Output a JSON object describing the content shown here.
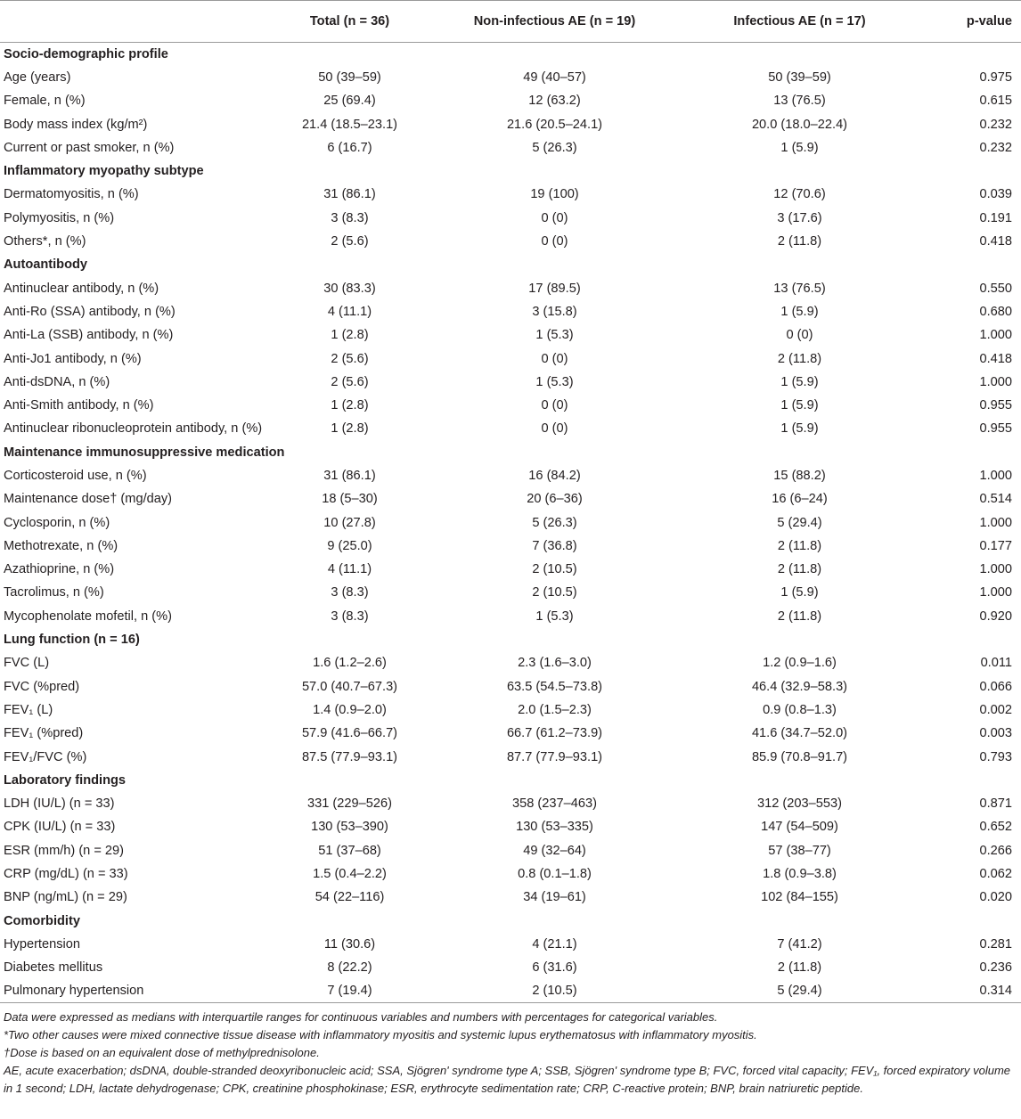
{
  "table": {
    "headers": {
      "label": "",
      "total": "Total (n = 36)",
      "noninf": "Non-infectious AE (n = 19)",
      "inf": "Infectious AE (n = 17)",
      "pvalue": "p-value"
    },
    "rows": [
      {
        "type": "section",
        "label": "Socio-demographic profile"
      },
      {
        "label": "Age (years)",
        "total": "50 (39–59)",
        "noninf": "49 (40–57)",
        "inf": "50 (39–59)",
        "p": "0.975"
      },
      {
        "label": "Female, n (%)",
        "total": "25 (69.4)",
        "noninf": "12 (63.2)",
        "inf": "13 (76.5)",
        "p": "0.615"
      },
      {
        "label": "Body mass index (kg/m²)",
        "total": "21.4 (18.5–23.1)",
        "noninf": "21.6 (20.5–24.1)",
        "inf": "20.0 (18.0–22.4)",
        "p": "0.232"
      },
      {
        "label": "Current or past smoker, n (%)",
        "total": "6 (16.7)",
        "noninf": "5 (26.3)",
        "inf": "1 (5.9)",
        "p": "0.232"
      },
      {
        "type": "section",
        "label": "Inflammatory myopathy subtype"
      },
      {
        "label": "Dermatomyositis, n (%)",
        "total": "31 (86.1)",
        "noninf": "19 (100)",
        "inf": "12 (70.6)",
        "p": "0.039"
      },
      {
        "label": "Polymyositis, n (%)",
        "total": "3 (8.3)",
        "noninf": "0 (0)",
        "inf": "3 (17.6)",
        "p": "0.191"
      },
      {
        "label": "Others*, n (%)",
        "total": "2 (5.6)",
        "noninf": "0 (0)",
        "inf": "2 (11.8)",
        "p": "0.418"
      },
      {
        "type": "section",
        "label": "Autoantibody"
      },
      {
        "label": "Antinuclear antibody, n (%)",
        "total": "30 (83.3)",
        "noninf": "17 (89.5)",
        "inf": "13 (76.5)",
        "p": "0.550"
      },
      {
        "label": "Anti-Ro (SSA) antibody, n (%)",
        "total": "4 (11.1)",
        "noninf": "3 (15.8)",
        "inf": "1 (5.9)",
        "p": "0.680"
      },
      {
        "label": "Anti-La (SSB) antibody, n (%)",
        "total": "1 (2.8)",
        "noninf": "1 (5.3)",
        "inf": "0 (0)",
        "p": "1.000"
      },
      {
        "label": "Anti-Jo1 antibody, n (%)",
        "total": "2 (5.6)",
        "noninf": "0 (0)",
        "inf": "2 (11.8)",
        "p": "0.418"
      },
      {
        "label": "Anti-dsDNA, n (%)",
        "total": "2 (5.6)",
        "noninf": "1 (5.3)",
        "inf": "1 (5.9)",
        "p": "1.000"
      },
      {
        "label": "Anti-Smith antibody, n (%)",
        "total": "1 (2.8)",
        "noninf": "0 (0)",
        "inf": "1 (5.9)",
        "p": "0.955"
      },
      {
        "label": "Antinuclear ribonucleoprotein antibody, n (%)",
        "total": "1 (2.8)",
        "noninf": "0 (0)",
        "inf": "1 (5.9)",
        "p": "0.955"
      },
      {
        "type": "section",
        "label": "Maintenance immunosuppressive medication"
      },
      {
        "label": "Corticosteroid use, n (%)",
        "total": "31 (86.1)",
        "noninf": "16 (84.2)",
        "inf": "15 (88.2)",
        "p": "1.000"
      },
      {
        "label": "Maintenance dose† (mg/day)",
        "total": "18 (5–30)",
        "noninf": "20 (6–36)",
        "inf": "16 (6–24)",
        "p": "0.514"
      },
      {
        "label": "Cyclosporin, n (%)",
        "total": "10 (27.8)",
        "noninf": "5 (26.3)",
        "inf": "5 (29.4)",
        "p": "1.000"
      },
      {
        "label": "Methotrexate, n (%)",
        "total": "9 (25.0)",
        "noninf": "7 (36.8)",
        "inf": "2 (11.8)",
        "p": "0.177"
      },
      {
        "label": "Azathioprine, n (%)",
        "total": "4 (11.1)",
        "noninf": "2 (10.5)",
        "inf": "2 (11.8)",
        "p": "1.000"
      },
      {
        "label": "Tacrolimus, n (%)",
        "total": "3 (8.3)",
        "noninf": "2 (10.5)",
        "inf": "1 (5.9)",
        "p": "1.000"
      },
      {
        "label": "Mycophenolate mofetil, n (%)",
        "total": "3 (8.3)",
        "noninf": "1 (5.3)",
        "inf": "2 (11.8)",
        "p": "0.920"
      },
      {
        "type": "section",
        "label": "Lung function (n = 16)"
      },
      {
        "label": "FVC (L)",
        "total": "1.6 (1.2–2.6)",
        "noninf": "2.3 (1.6–3.0)",
        "inf": "1.2 (0.9–1.6)",
        "p": "0.011"
      },
      {
        "label": "FVC (%pred)",
        "total": "57.0 (40.7–67.3)",
        "noninf": "63.5 (54.5–73.8)",
        "inf": "46.4 (32.9–58.3)",
        "p": "0.066"
      },
      {
        "label": "FEV₁ (L)",
        "total": "1.4 (0.9–2.0)",
        "noninf": "2.0 (1.5–2.3)",
        "inf": "0.9 (0.8–1.3)",
        "p": "0.002"
      },
      {
        "label": "FEV₁ (%pred)",
        "total": "57.9 (41.6–66.7)",
        "noninf": "66.7 (61.2–73.9)",
        "inf": "41.6 (34.7–52.0)",
        "p": "0.003"
      },
      {
        "label": "FEV₁/FVC (%)",
        "total": "87.5 (77.9–93.1)",
        "noninf": "87.7 (77.9–93.1)",
        "inf": "85.9 (70.8–91.7)",
        "p": "0.793"
      },
      {
        "type": "section",
        "label": "Laboratory findings"
      },
      {
        "label": "LDH (IU/L) (n = 33)",
        "total": "331 (229–526)",
        "noninf": "358 (237–463)",
        "inf": "312 (203–553)",
        "p": "0.871"
      },
      {
        "label": "CPK (IU/L) (n = 33)",
        "total": "130 (53–390)",
        "noninf": "130 (53–335)",
        "inf": "147 (54–509)",
        "p": "0.652"
      },
      {
        "label": "ESR (mm/h) (n = 29)",
        "total": "51 (37–68)",
        "noninf": "49 (32–64)",
        "inf": "57 (38–77)",
        "p": "0.266"
      },
      {
        "label": "CRP (mg/dL) (n = 33)",
        "total": "1.5 (0.4–2.2)",
        "noninf": "0.8 (0.1–1.8)",
        "inf": "1.8 (0.9–3.8)",
        "p": "0.062"
      },
      {
        "label": "BNP (ng/mL) (n = 29)",
        "total": "54 (22–116)",
        "noninf": "34 (19–61)",
        "inf": "102 (84–155)",
        "p": "0.020"
      },
      {
        "type": "section",
        "label": "Comorbidity"
      },
      {
        "label": "Hypertension",
        "total": "11 (30.6)",
        "noninf": "4 (21.1)",
        "inf": "7 (41.2)",
        "p": "0.281"
      },
      {
        "label": "Diabetes mellitus",
        "total": "8 (22.2)",
        "noninf": "6 (31.6)",
        "inf": "2 (11.8)",
        "p": "0.236"
      },
      {
        "label": "Pulmonary hypertension",
        "total": "7 (19.4)",
        "noninf": "2 (10.5)",
        "inf": "5 (29.4)",
        "p": "0.314"
      }
    ]
  },
  "footnotes": {
    "data_note": "Data were expressed as medians with interquartile ranges for continuous variables and numbers with percentages for categorical variables.",
    "star_note": "*Two other causes were mixed connective tissue disease with inflammatory myositis and systemic lupus erythematosus with inflammatory myositis.",
    "dagger_note": "†Dose is based on an equivalent dose of methylprednisolone.",
    "abbrev_note": "AE, acute exacerbation; dsDNA, double-stranded deoxyribonucleic acid; SSA, Sjögren' syndrome type A; SSB, Sjögren' syndrome type B; FVC, forced vital capacity; FEV₁, forced expiratory volume in 1 second; LDH, lactate dehydrogenase; CPK, creatinine phosphokinase; ESR, erythrocyte sedimentation rate; CRP, C-reactive protein; BNP, brain natriuretic peptide."
  }
}
